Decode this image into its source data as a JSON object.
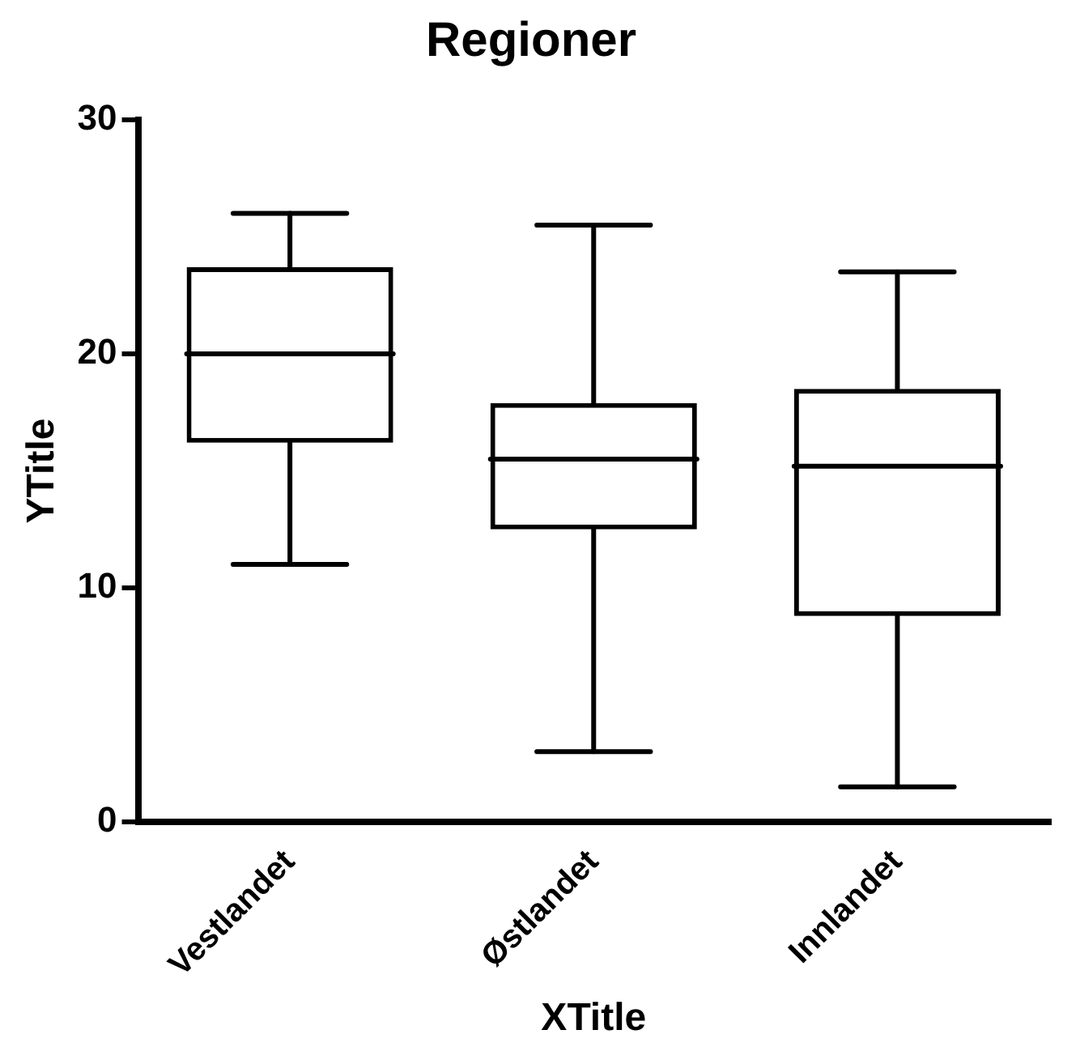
{
  "chart_data": {
    "type": "box",
    "title": "Regioner",
    "xlabel": "XTitle",
    "ylabel": "YTitle",
    "categories": [
      "Vestlandet",
      "Østlandet",
      "Innlandet"
    ],
    "boxes": [
      {
        "low": 11,
        "q1": 16.2,
        "median": 20,
        "q3": 23.7,
        "high": 26
      },
      {
        "low": 3,
        "q1": 12.5,
        "median": 15.5,
        "q3": 17.9,
        "high": 25.5
      },
      {
        "low": 1.5,
        "q1": 8.8,
        "median": 15.2,
        "q3": 18.5,
        "high": 23.5
      }
    ],
    "ylim": [
      0,
      30
    ],
    "yticks": [
      0,
      10,
      20,
      30
    ],
    "grid": false,
    "legend": false
  }
}
